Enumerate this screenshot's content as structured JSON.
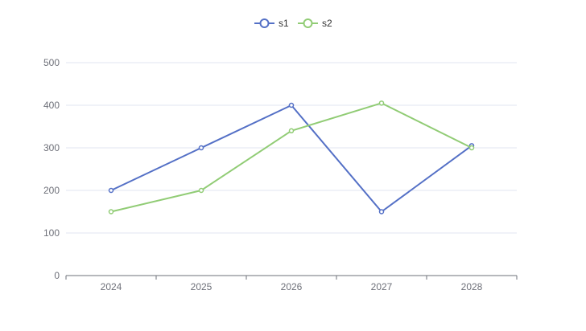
{
  "chart_data": {
    "type": "line",
    "title": "",
    "xlabel": "",
    "ylabel": "",
    "categories": [
      "2024",
      "2025",
      "2026",
      "2027",
      "2028"
    ],
    "series": [
      {
        "name": "s1",
        "values": [
          200,
          300,
          400,
          150,
          305
        ],
        "color": "#5470c6"
      },
      {
        "name": "s2",
        "values": [
          150,
          200,
          340,
          405,
          300
        ],
        "color": "#91cc75"
      }
    ],
    "ylim": [
      0,
      500
    ],
    "yticks": [
      "0",
      "100",
      "200",
      "300",
      "400",
      "500"
    ],
    "grid": true,
    "legend_position": "top-center"
  }
}
